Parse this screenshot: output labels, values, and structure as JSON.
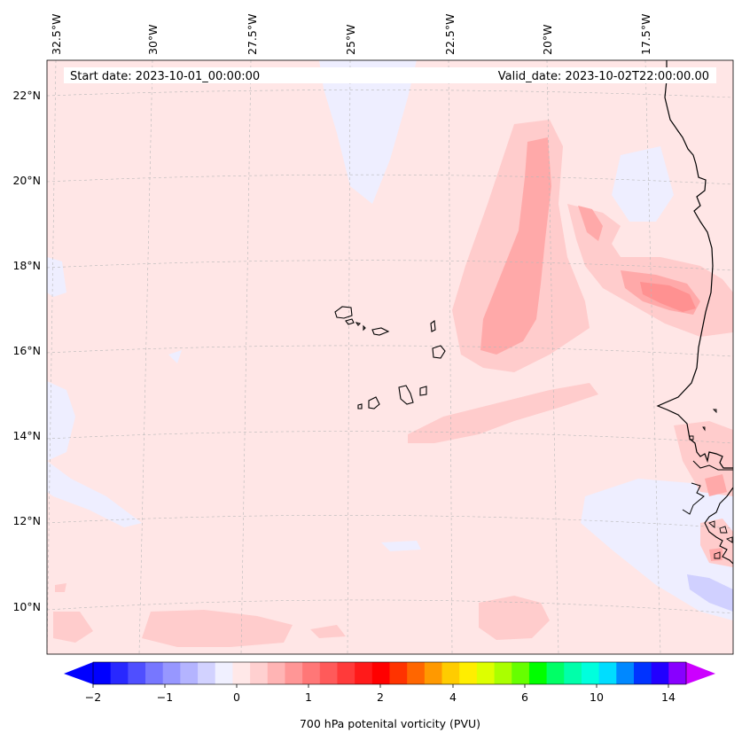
{
  "header": {
    "start_date": "Start date: 2023-10-01_00:00:00",
    "valid_date": "Valid_date: 2023-10-02T22:00:00.00"
  },
  "lon_labels": [
    "32.5°W",
    "30°W",
    "27.5°W",
    "25°W",
    "22.5°W",
    "20°W",
    "17.5°W"
  ],
  "lat_labels": [
    "22°N",
    "20°N",
    "18°N",
    "16°N",
    "14°N",
    "12°N",
    "10°N"
  ],
  "colorbar": {
    "label": "700 hPa potenital vorticity (PVU)",
    "ticks": [
      "−2",
      "−1",
      "0",
      "1",
      "2",
      "4",
      "6",
      "10",
      "14"
    ],
    "colors": [
      "#0000ff",
      "#2828ff",
      "#4f4fff",
      "#7777ff",
      "#9797ff",
      "#b4b4ff",
      "#d2d2ff",
      "#f0f0ff",
      "#ffe8e8",
      "#ffd0d0",
      "#ffb4b4",
      "#ff9696",
      "#ff7777",
      "#ff5a5a",
      "#ff3a3a",
      "#ff1a1a",
      "#ff0000",
      "#ff3300",
      "#ff6600",
      "#ff9900",
      "#ffcc00",
      "#ffee00",
      "#ddff00",
      "#aaff00",
      "#66ff00",
      "#00ff00",
      "#00ff66",
      "#00ffaa",
      "#00ffdd",
      "#00ddff",
      "#0088ff",
      "#0033ff",
      "#2200ff",
      "#8800ff"
    ],
    "extend_min_color": "#0000ff",
    "extend_max_color": "#cc00ff"
  },
  "colors": {
    "background_pv": "#ffe6e6",
    "weak_positive": "#ffcccc",
    "moderate_positive": "#ffa9a9",
    "weak_negative": "#eeeeff",
    "negative": "#d0d0ff",
    "coast": "#000000"
  }
}
